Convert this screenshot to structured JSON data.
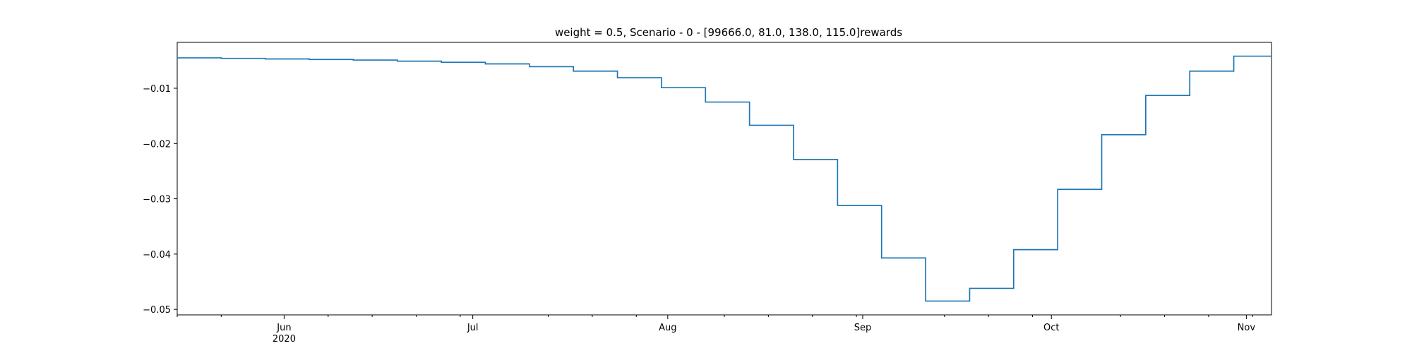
{
  "chart_data": {
    "type": "line",
    "step": "post",
    "title": "weight = 0.5, Scenario - 0 - [99666.0, 81.0, 138.0, 115.0]rewards",
    "xlabel": "",
    "ylabel": "",
    "color": "#1f77b4",
    "grid": false,
    "legend": "none",
    "xlim": [
      "2020-05-15",
      "2020-11-05"
    ],
    "ylim": [
      -0.051,
      -0.0017
    ],
    "x": [
      "2020-05-15",
      "2020-05-22",
      "2020-05-29",
      "2020-06-05",
      "2020-06-12",
      "2020-06-19",
      "2020-06-26",
      "2020-07-03",
      "2020-07-10",
      "2020-07-17",
      "2020-07-24",
      "2020-07-31",
      "2020-08-07",
      "2020-08-14",
      "2020-08-21",
      "2020-08-28",
      "2020-09-04",
      "2020-09-11",
      "2020-09-18",
      "2020-09-25",
      "2020-10-02",
      "2020-10-09",
      "2020-10-16",
      "2020-10-23",
      "2020-10-30",
      "2020-11-05"
    ],
    "y": [
      -0.0045,
      -0.0046,
      -0.0047,
      -0.0048,
      -0.0049,
      -0.0051,
      -0.0053,
      -0.0056,
      -0.0061,
      -0.0069,
      -0.0081,
      -0.0099,
      -0.0125,
      -0.0167,
      -0.0229,
      -0.0312,
      -0.0407,
      -0.0485,
      -0.0462,
      -0.0392,
      -0.0283,
      -0.0184,
      -0.0113,
      -0.0069,
      -0.0042,
      -0.0042
    ],
    "yticks": [
      -0.05,
      -0.04,
      -0.03,
      -0.02,
      -0.01
    ],
    "ytick_labels": [
      "−0.05",
      "−0.04",
      "−0.03",
      "−0.02",
      "−0.01"
    ],
    "xticks": [
      {
        "date": "2020-06-01",
        "label": "Jun",
        "sublabel": "2020"
      },
      {
        "date": "2020-07-01",
        "label": "Jul"
      },
      {
        "date": "2020-08-01",
        "label": "Aug"
      },
      {
        "date": "2020-09-01",
        "label": "Sep"
      },
      {
        "date": "2020-10-01",
        "label": "Oct"
      },
      {
        "date": "2020-11-01",
        "label": "Nov"
      }
    ],
    "minor_xticks": [
      "2020-05-15",
      "2020-05-22",
      "2020-06-08",
      "2020-06-15",
      "2020-06-22",
      "2020-06-29",
      "2020-07-13",
      "2020-07-20",
      "2020-07-27",
      "2020-08-10",
      "2020-08-17",
      "2020-08-24",
      "2020-08-31",
      "2020-09-14",
      "2020-09-21",
      "2020-09-28",
      "2020-10-12",
      "2020-10-19",
      "2020-10-26",
      "2020-11-02"
    ]
  }
}
